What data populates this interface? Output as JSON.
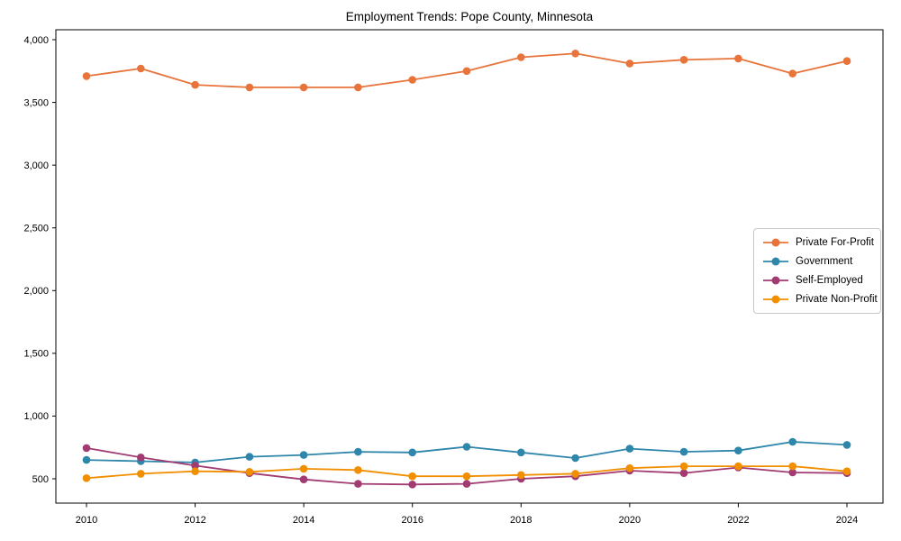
{
  "figure": {
    "background": "#ffffff",
    "axis_color": "#000000"
  },
  "chart_data": {
    "type": "line",
    "title": "Employment Trends: Pope County, Minnesota",
    "xlabel": "",
    "ylabel": "",
    "grid": false,
    "legend_position": "center right",
    "x": [
      2010,
      2011,
      2012,
      2013,
      2014,
      2015,
      2016,
      2017,
      2018,
      2019,
      2020,
      2021,
      2022,
      2023,
      2024
    ],
    "x_ticks": [
      2010,
      2012,
      2014,
      2016,
      2018,
      2020,
      2022,
      2024
    ],
    "x_tick_labels": [
      "2010",
      "2012",
      "2014",
      "2016",
      "2018",
      "2020",
      "2022",
      "2024"
    ],
    "y_ticks": [
      500,
      1000,
      1500,
      2000,
      2500,
      3000,
      3500,
      4000
    ],
    "y_tick_labels": [
      "500",
      "1,000",
      "1,500",
      "2,000",
      "2,500",
      "3,000",
      "3,500",
      "4,000"
    ],
    "xlim": [
      2009.44,
      2024.55
    ],
    "ylim": [
      310,
      4080
    ],
    "series": [
      {
        "name": "Private For-Profit",
        "color": "#E8743B",
        "values": [
          3710,
          3770,
          3640,
          3620,
          3620,
          3620,
          3680,
          3750,
          3860,
          3890,
          3810,
          3840,
          3850,
          3730,
          3830
        ]
      },
      {
        "name": "Government",
        "color": "#2E86AB",
        "values": [
          650,
          640,
          630,
          675,
          690,
          715,
          710,
          755,
          710,
          665,
          740,
          715,
          725,
          795,
          770
        ]
      },
      {
        "name": "Self-Employed",
        "color": "#A23B72",
        "values": [
          745,
          670,
          605,
          545,
          495,
          460,
          455,
          460,
          500,
          520,
          565,
          545,
          590,
          550,
          545
        ]
      },
      {
        "name": "Private Non-Profit",
        "color": "#F18F01",
        "values": [
          505,
          540,
          560,
          555,
          580,
          570,
          520,
          520,
          530,
          540,
          585,
          600,
          600,
          600,
          560
        ]
      }
    ]
  }
}
